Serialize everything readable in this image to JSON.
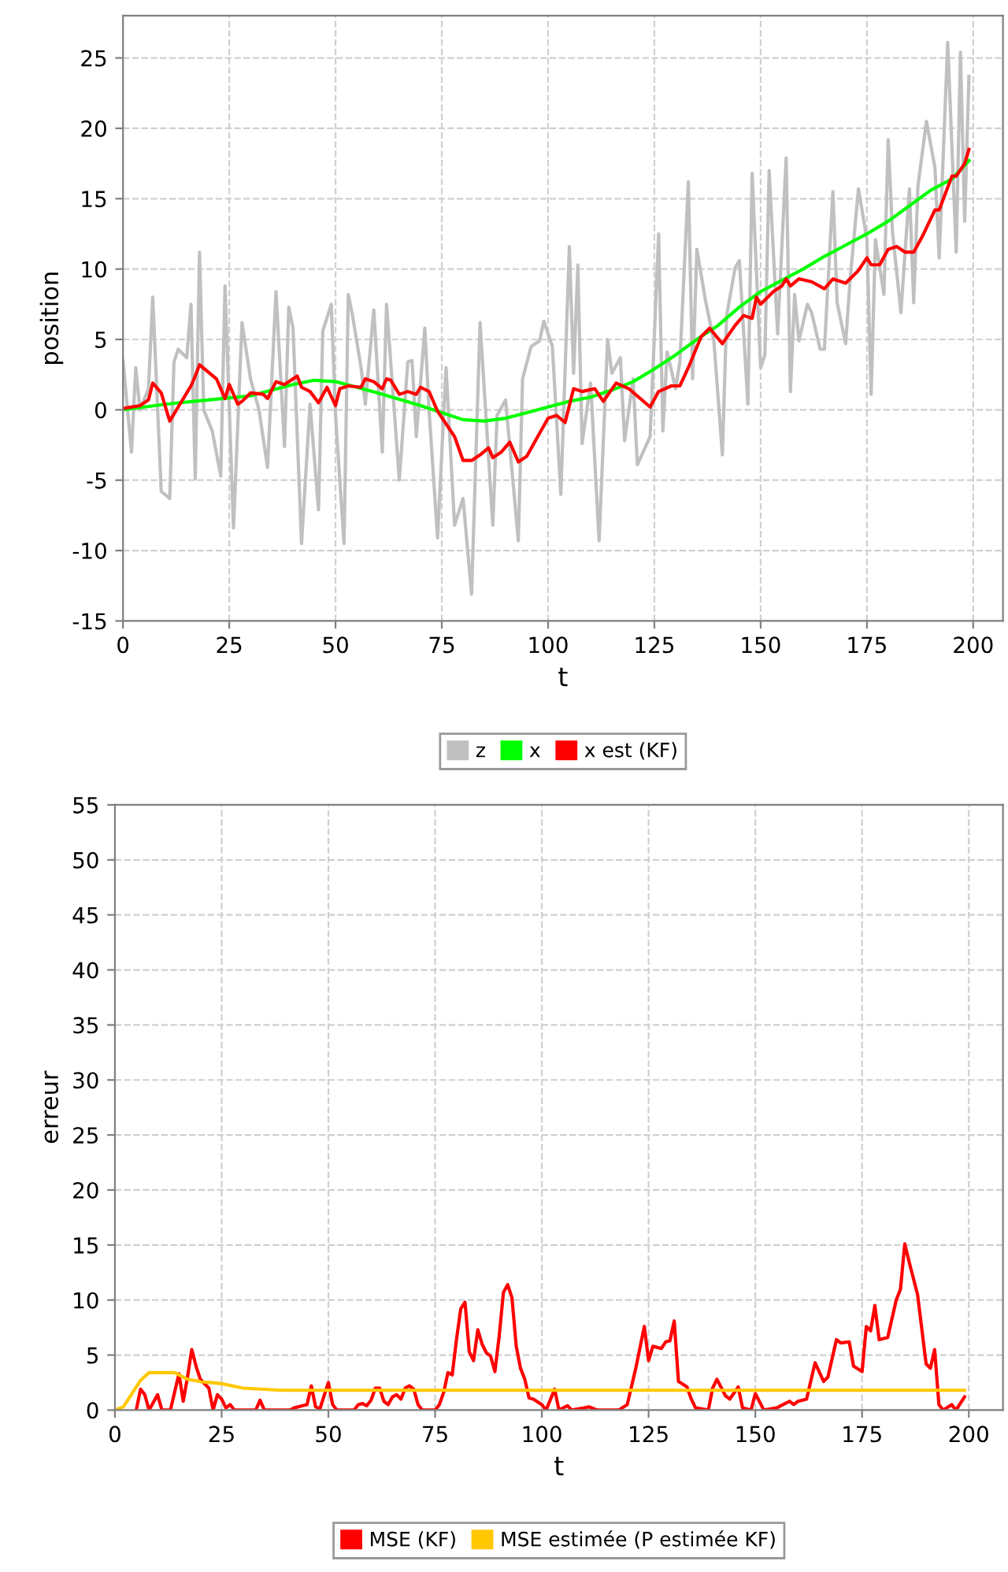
{
  "chart_data": [
    {
      "type": "line",
      "xlabel": "t",
      "ylabel": "position",
      "xlim": [
        0,
        207
      ],
      "ylim": [
        -15,
        28
      ],
      "xticks": [
        0,
        25,
        50,
        75,
        100,
        125,
        150,
        175,
        200
      ],
      "yticks": [
        -15,
        -10,
        -5,
        0,
        5,
        10,
        15,
        20,
        25
      ],
      "grid": true,
      "legend": "bottom",
      "series": [
        {
          "name": "z",
          "color": "#c0c0c0",
          "x": [
            0,
            2,
            3,
            4,
            6,
            7,
            9,
            11,
            12,
            13,
            15,
            16,
            17,
            18,
            19,
            21,
            23,
            24,
            26,
            28,
            30,
            32,
            34,
            36,
            38,
            39,
            40,
            42,
            44,
            46,
            47,
            49,
            50,
            52,
            53,
            54,
            56,
            57,
            59,
            61,
            62,
            65,
            67,
            68,
            69,
            71,
            72,
            74,
            76,
            78,
            80,
            82,
            84,
            87,
            88,
            90,
            93,
            94,
            96,
            98,
            99,
            101,
            103,
            105,
            106,
            107,
            108,
            110,
            112,
            114,
            115,
            117,
            118,
            120,
            121,
            124,
            126,
            127,
            128,
            130,
            131,
            133,
            134,
            135,
            137,
            139,
            141,
            142,
            144,
            145,
            147,
            148,
            150,
            151,
            152,
            154,
            156,
            157,
            158,
            159,
            161,
            162,
            164,
            165,
            167,
            168,
            170,
            171,
            173,
            175,
            176,
            177,
            179,
            180,
            181,
            183,
            185,
            186,
            187,
            189,
            191,
            192,
            194,
            196,
            197,
            198,
            199
          ],
          "values": [
            3.5,
            -3,
            3,
            0,
            1.5,
            8,
            -5.8,
            -6.3,
            3.4,
            4.3,
            3.7,
            7.5,
            -4.9,
            11.2,
            0,
            -1.5,
            -4.7,
            8.8,
            -8.4,
            6.2,
            2.2,
            0,
            -4.1,
            8.4,
            -2.6,
            7.3,
            5.8,
            -9.5,
            0.4,
            -7.1,
            5.6,
            7.5,
            -0.4,
            -9.5,
            8.2,
            6.7,
            3,
            0.4,
            7.1,
            -3,
            7.5,
            -5,
            3.4,
            3.5,
            -1.9,
            5.8,
            0,
            -9.1,
            3,
            -8.2,
            -6.3,
            -13.1,
            6.2,
            -8.2,
            -0.4,
            0.7,
            -9.3,
            2.2,
            4.5,
            4.9,
            6.3,
            4.5,
            -6,
            11.6,
            2.6,
            10.3,
            -2.4,
            1.9,
            -9.3,
            5,
            2.6,
            3.7,
            -2.2,
            2.2,
            -3.9,
            -1.9,
            12.5,
            -1.5,
            4.1,
            1.5,
            3.4,
            16.2,
            2.2,
            11.4,
            7.8,
            4.9,
            -3.2,
            6.7,
            10.1,
            10.6,
            0.4,
            16.8,
            3,
            3.9,
            17,
            5.4,
            17.9,
            1.3,
            8.2,
            4.9,
            7.5,
            6.9,
            4.3,
            4.3,
            15.5,
            7.6,
            4.7,
            9.1,
            15.7,
            12.1,
            1.1,
            12.1,
            8.2,
            19.2,
            12.7,
            6.9,
            15.7,
            7.6,
            15.9,
            20.5,
            17.2,
            10.8,
            26.1,
            11.2,
            25.4,
            13.4,
            23.7
          ]
        },
        {
          "name": "x",
          "color": "#00ff00",
          "x": [
            0,
            10,
            20,
            30,
            40,
            45,
            50,
            60,
            70,
            75,
            80,
            85,
            90,
            95,
            100,
            105,
            110,
            115,
            120,
            125,
            130,
            135,
            140,
            145,
            150,
            155,
            160,
            165,
            170,
            175,
            180,
            185,
            190,
            195,
            199
          ],
          "values": [
            0,
            0.4,
            0.7,
            1.0,
            1.8,
            2.1,
            2.0,
            1.2,
            0.3,
            -0.2,
            -0.7,
            -0.8,
            -0.6,
            -0.2,
            0.2,
            0.6,
            0.9,
            1.4,
            2.0,
            2.9,
            3.9,
            5.0,
            6.0,
            7.3,
            8.4,
            9.2,
            10.0,
            10.9,
            11.7,
            12.5,
            13.4,
            14.5,
            15.6,
            16.4,
            17.7
          ]
        },
        {
          "name": "x est (KF)",
          "color": "#ff0000",
          "x": [
            0,
            4,
            6,
            7,
            9,
            11,
            13,
            16,
            17,
            18,
            20,
            22,
            24,
            25,
            27,
            28,
            30,
            33,
            34,
            36,
            38,
            41,
            42,
            44,
            46,
            48,
            50,
            51,
            53,
            56,
            57,
            59,
            61,
            62,
            63,
            65,
            67,
            69,
            70,
            72,
            74,
            76,
            78,
            80,
            82,
            84,
            86,
            87,
            89,
            91,
            93,
            95,
            97,
            100,
            102,
            104,
            106,
            108,
            111,
            113,
            116,
            119,
            124,
            126,
            129,
            131,
            133,
            136,
            138,
            141,
            144,
            146,
            148,
            149,
            150,
            153,
            155,
            156,
            157,
            159,
            162,
            165,
            167,
            170,
            173,
            175,
            176,
            178,
            180,
            182,
            184,
            186,
            188,
            191,
            192,
            195,
            196,
            198,
            199
          ],
          "values": [
            0.1,
            0.3,
            0.7,
            1.9,
            1.2,
            -0.8,
            0.2,
            1.7,
            2.4,
            3.2,
            2.7,
            2.2,
            0.8,
            1.8,
            0.4,
            0.6,
            1.2,
            1.1,
            0.8,
            2.0,
            1.8,
            2.4,
            1.6,
            1.3,
            0.5,
            1.6,
            0.3,
            1.5,
            1.7,
            1.6,
            2.2,
            2.0,
            1.5,
            2.2,
            2.1,
            1.1,
            1.3,
            1.1,
            1.6,
            1.3,
            -0.1,
            -1.0,
            -1.9,
            -3.6,
            -3.6,
            -3.2,
            -2.7,
            -3.4,
            -3.0,
            -2.3,
            -3.7,
            -3.3,
            -2.2,
            -0.6,
            -0.4,
            -0.9,
            1.5,
            1.3,
            1.5,
            0.6,
            1.9,
            1.5,
            0.2,
            1.3,
            1.7,
            1.7,
            3.0,
            5.2,
            5.8,
            4.7,
            6.0,
            6.7,
            6.5,
            8.0,
            7.5,
            8.4,
            8.8,
            9.3,
            8.8,
            9.3,
            9.1,
            8.6,
            9.3,
            9.0,
            9.9,
            10.8,
            10.3,
            10.3,
            11.4,
            11.6,
            11.2,
            11.2,
            12.3,
            14.2,
            14.2,
            16.6,
            16.6,
            17.5,
            18.5
          ]
        }
      ]
    },
    {
      "type": "line",
      "xlabel": "t",
      "ylabel": "erreur",
      "xlim": [
        0,
        208
      ],
      "ylim": [
        0,
        55
      ],
      "xticks": [
        0,
        25,
        50,
        75,
        100,
        125,
        150,
        175,
        200
      ],
      "yticks": [
        0,
        5,
        10,
        15,
        20,
        25,
        30,
        35,
        40,
        45,
        50,
        55
      ],
      "grid": true,
      "legend": "bottom",
      "series": [
        {
          "name": "MSE (KF)",
          "color": "#ff0000",
          "x": [
            5,
            6,
            7,
            8,
            10,
            11,
            13,
            15,
            16,
            17,
            18,
            19,
            20,
            22,
            23,
            24,
            25,
            26,
            27,
            28,
            33,
            34,
            35,
            41,
            42,
            44,
            45,
            46,
            47,
            48,
            50,
            51,
            52,
            56,
            57,
            58,
            59,
            60,
            61,
            62,
            63,
            64,
            65,
            66,
            67,
            68,
            69,
            70,
            71,
            72,
            75,
            76,
            77,
            78,
            79,
            80,
            81,
            82,
            83,
            84,
            85,
            86,
            87,
            88,
            89,
            90,
            91,
            92,
            93,
            94,
            95,
            96,
            97,
            98,
            100,
            101,
            103,
            104,
            106,
            107,
            110,
            111,
            113,
            118,
            120,
            122,
            124,
            125,
            126,
            128,
            129,
            130,
            131,
            132,
            134,
            135,
            136,
            139,
            140,
            141,
            143,
            144,
            146,
            147,
            149,
            150,
            152,
            155,
            158,
            159,
            160,
            162,
            164,
            166,
            167,
            169,
            170,
            172,
            173,
            175,
            176,
            177,
            178,
            179,
            181,
            183,
            184,
            185,
            186,
            188,
            190,
            191,
            192,
            193,
            194,
            196,
            197,
            199
          ],
          "values": [
            0,
            1.9,
            1.4,
            0,
            1.4,
            0,
            0,
            3.3,
            0.8,
            3.0,
            5.5,
            4.0,
            2.8,
            2.0,
            0,
            1.4,
            1.0,
            0.2,
            0.5,
            0,
            0,
            0.9,
            0,
            0,
            0.2,
            0.4,
            0.5,
            2.2,
            0.3,
            0.1,
            2.5,
            0.5,
            0,
            0,
            0.5,
            0.6,
            0.4,
            0.9,
            2.0,
            2.0,
            0.8,
            0.5,
            1.2,
            1.4,
            1.0,
            2.0,
            2.2,
            1.9,
            0.5,
            0,
            0,
            0.5,
            1.6,
            3.4,
            3.2,
            6.4,
            9.2,
            9.8,
            5.3,
            4.5,
            7.3,
            6.0,
            5.2,
            4.9,
            3.5,
            6.7,
            10.7,
            11.4,
            10.2,
            5.8,
            3.8,
            2.8,
            1.1,
            1.0,
            0.5,
            0,
            1.9,
            0,
            0.4,
            0,
            0.2,
            0.3,
            0,
            0,
            0.5,
            3.8,
            7.6,
            4.5,
            5.8,
            5.6,
            6.2,
            6.3,
            8.1,
            2.6,
            2.1,
            1.0,
            0.2,
            0,
            2.0,
            2.8,
            1.3,
            1.0,
            2.1,
            0.2,
            0,
            1.5,
            0,
            0.2,
            0.8,
            0.5,
            0.8,
            1.0,
            4.3,
            2.6,
            3.0,
            6.4,
            6.1,
            6.2,
            4.0,
            3.5,
            7.6,
            7.2,
            9.5,
            6.4,
            6.6,
            10.0,
            11.0,
            15.1,
            13.5,
            10.5,
            4.2,
            3.8,
            5.5,
            0.5,
            0,
            0.5,
            0,
            1.2
          ]
        },
        {
          "name": "MSE estimée (P estimée KF)",
          "color": "#ffc800",
          "x": [
            0,
            2,
            4,
            6,
            8,
            14,
            17,
            20,
            25,
            30,
            39,
            50,
            100,
            150,
            199
          ],
          "values": [
            0,
            0.3,
            1.5,
            2.7,
            3.4,
            3.4,
            2.8,
            2.6,
            2.4,
            2.0,
            1.8,
            1.8,
            1.8,
            1.8,
            1.8
          ]
        }
      ]
    }
  ]
}
